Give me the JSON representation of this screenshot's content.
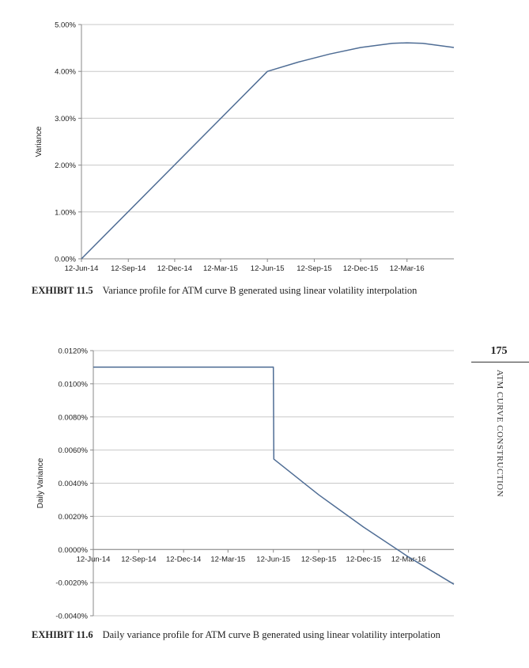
{
  "chart_data": [
    {
      "type": "line",
      "ylabel": "Variance",
      "xlabel": "",
      "x_ticks": [
        "12-Jun-14",
        "12-Sep-14",
        "12-Dec-14",
        "12-Mar-15",
        "12-Jun-15",
        "12-Sep-15",
        "12-Dec-15",
        "12-Mar-16"
      ],
      "y_ticks": [
        "0.00%",
        "1.00%",
        "2.00%",
        "3.00%",
        "4.00%",
        "5.00%"
      ],
      "ylim": [
        0,
        0.05
      ],
      "xlim": [
        "2014-06-12",
        "2016-06-12"
      ],
      "grid": true,
      "series": [
        {
          "color": "#4f6d95",
          "points": [
            [
              "2014-06-12",
              0.0
            ],
            [
              "2015-06-12",
              0.04
            ],
            [
              "2015-08-12",
              0.042
            ],
            [
              "2015-10-12",
              0.0437
            ],
            [
              "2015-12-12",
              0.0451
            ],
            [
              "2016-02-12",
              0.046
            ],
            [
              "2016-03-12",
              0.0461
            ],
            [
              "2016-04-12",
              0.046
            ],
            [
              "2016-06-12",
              0.0451
            ]
          ]
        }
      ]
    },
    {
      "type": "line",
      "ylabel": "Daily Variance",
      "xlabel": "",
      "x_ticks": [
        "12-Jun-14",
        "12-Sep-14",
        "12-Dec-14",
        "12-Mar-15",
        "12-Jun-15",
        "12-Sep-15",
        "12-Dec-15",
        "12-Mar-16"
      ],
      "y_ticks": [
        "0.0120%",
        "0.0100%",
        "0.0080%",
        "0.0060%",
        "0.0040%",
        "0.0020%",
        "0.0000%",
        "-0.0020%",
        "-0.0040%"
      ],
      "ylim": [
        -4e-05,
        0.00012
      ],
      "xlim": [
        "2014-06-12",
        "2016-06-12"
      ],
      "grid": true,
      "series": [
        {
          "color": "#4f6d95",
          "points": [
            [
              "2014-06-12",
              0.00011
            ],
            [
              "2015-06-12",
              0.00011
            ],
            [
              "2015-06-13",
              5.45e-05
            ],
            [
              "2015-09-12",
              3.3e-05
            ],
            [
              "2015-12-12",
              1.35e-05
            ],
            [
              "2016-03-12",
              -4.5e-06
            ],
            [
              "2016-06-12",
              -2.1e-05
            ]
          ]
        }
      ]
    }
  ],
  "captions": [
    {
      "label": "EXHIBIT 11.5",
      "text": "Variance profile for ATM curve B generated using linear volatility interpolation"
    },
    {
      "label": "EXHIBIT 11.6",
      "text": "Daily variance profile for ATM curve B generated using linear volatility interpolation"
    }
  ],
  "page_number": "175",
  "running_head": "ATM CURVE CONSTRUCTION"
}
